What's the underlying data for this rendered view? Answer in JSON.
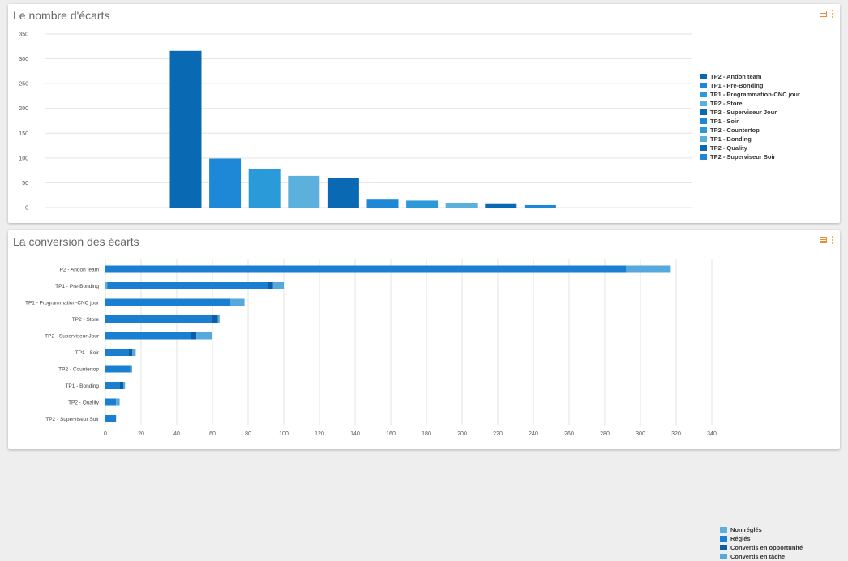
{
  "panels": [
    {
      "title": "Le nombre d'écarts",
      "chart_data": {
        "type": "bar",
        "title": "Le nombre d'écarts",
        "categories": [
          "TP2 - Andon team",
          "TP1 - Pre-Bonding",
          "TP1 - Programmation-CNC jour",
          "TP2 - Store",
          "TP2 - Superviseur Jour",
          "TP1 - Soir",
          "TP2 - Countertop",
          "TP1 - Bonding",
          "TP2 - Quality",
          "TP2 - Superviseur Soir"
        ],
        "values": [
          316,
          99,
          77,
          64,
          60,
          16,
          14,
          9,
          7,
          5
        ],
        "colors": [
          "#0a69b3",
          "#1e88d6",
          "#2b9ad8",
          "#5cb0de",
          "#0a69b3",
          "#1e88d6",
          "#2b9ad8",
          "#5cb0de",
          "#0a69b3",
          "#1e88d6"
        ],
        "ylim": [
          0,
          350
        ],
        "yticks": [
          0,
          50,
          100,
          150,
          200,
          250,
          300,
          350
        ],
        "grid": true,
        "legend": "right"
      }
    },
    {
      "title": "La conversion des écarts",
      "chart_data": {
        "type": "bar",
        "orientation": "horizontal",
        "stacked": true,
        "title": "La conversion des écarts",
        "categories": [
          "TP2 - Andon team",
          "TP1 - Pre-Bonding",
          "TP1 - Programmation-CNC jour",
          "TP2 - Store",
          "TP2 - Superviseur Jour",
          "TP1 - Soir",
          "TP2 - Countertop",
          "TP1 - Bonding",
          "TP2 - Quality",
          "TP2 - Superviseur Soir"
        ],
        "series": [
          {
            "name": "Non réglés",
            "color": "#5cb0de",
            "values": [
              0,
              1,
              0,
              0,
              0,
              0,
              0,
              0,
              0,
              0
            ]
          },
          {
            "name": "Réglés",
            "color": "#1a7fd0",
            "values": [
              292,
              90,
              70,
              60,
              48,
              13,
              14,
              8,
              6,
              6
            ]
          },
          {
            "name": "Convertis en opportunité",
            "color": "#0b5ea8",
            "values": [
              0,
              3,
              0,
              3,
              3,
              2,
              0,
              2,
              0,
              0
            ]
          },
          {
            "name": "Convertis en tâche",
            "color": "#55a9dd",
            "values": [
              25,
              6,
              8,
              1,
              9,
              2,
              1,
              1,
              2,
              0
            ]
          }
        ],
        "xlim": [
          0,
          340
        ],
        "xticks": [
          0,
          20,
          40,
          60,
          80,
          100,
          120,
          140,
          160,
          180,
          200,
          220,
          240,
          260,
          280,
          300,
          320,
          340
        ],
        "grid": true,
        "legend": "right"
      }
    }
  ]
}
